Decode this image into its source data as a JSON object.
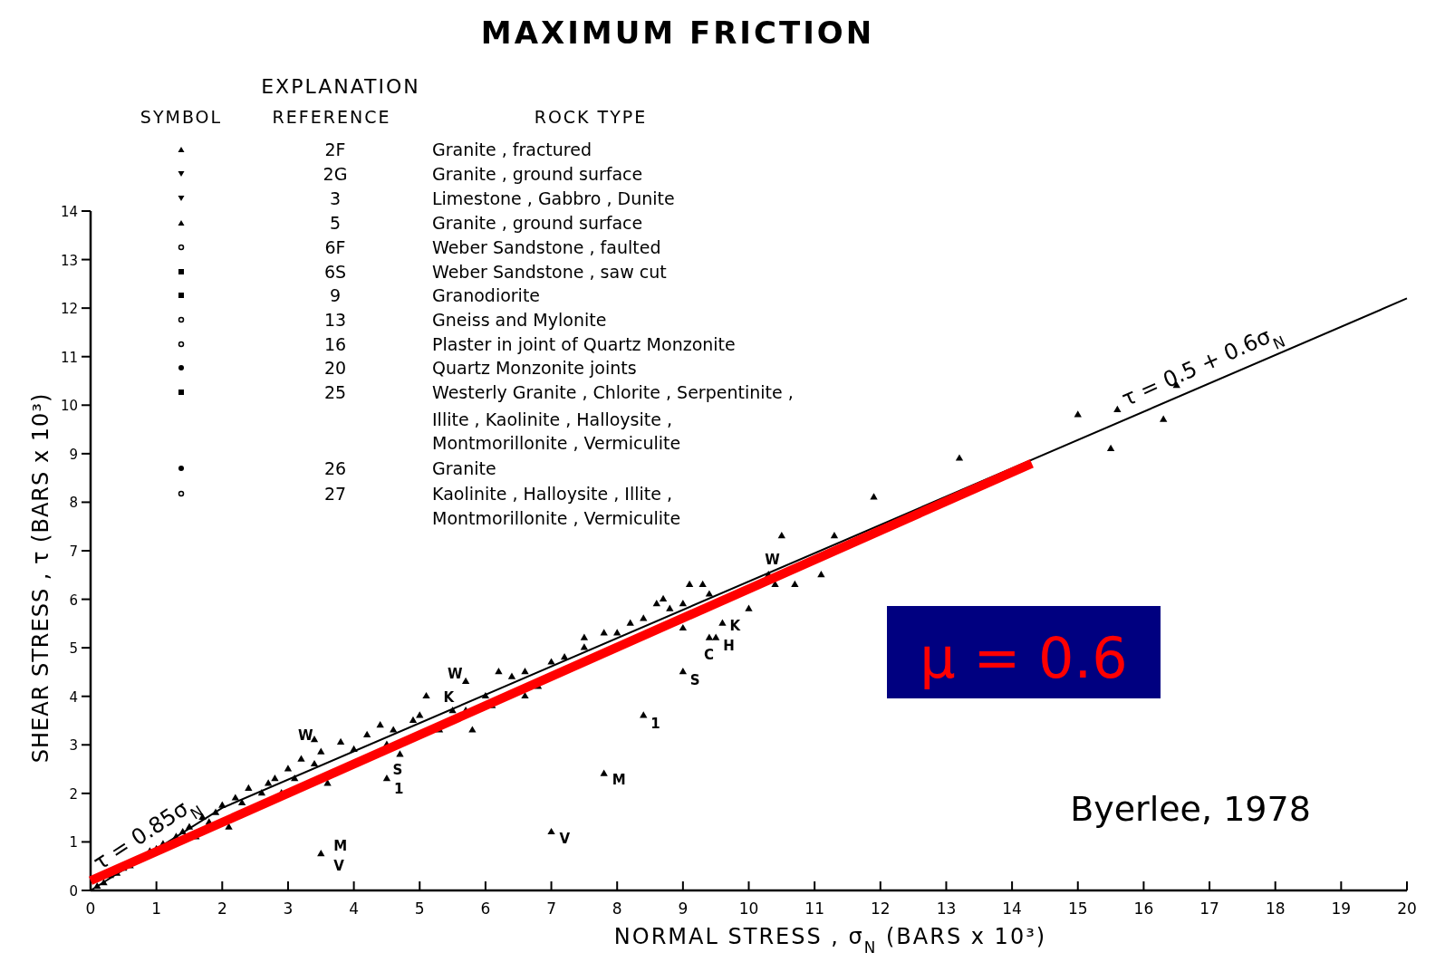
{
  "chart_data": {
    "type": "scatter",
    "title": "MAXIMUM FRICTION",
    "xlabel": "NORMAL STRESS , σ$_{N}$ (BARS x 10³)",
    "ylabel": "SHEAR STRESS , τ (BARS x 10³)",
    "xlim": [
      0,
      20
    ],
    "ylim": [
      0,
      14
    ],
    "xticks": [
      0,
      1,
      2,
      3,
      4,
      5,
      6,
      7,
      8,
      9,
      10,
      11,
      12,
      13,
      14,
      15,
      16,
      17,
      18,
      19,
      20
    ],
    "yticks": [
      0,
      1,
      2,
      3,
      4,
      5,
      6,
      7,
      8,
      9,
      10,
      11,
      12,
      13,
      14
    ],
    "series": [
      {
        "marker": "triangle",
        "color": "#000000",
        "x": [
          0.1,
          0.2,
          0.3,
          0.4,
          0.5,
          0.6,
          0.9,
          1.0,
          1.1,
          1.3,
          1.4,
          1.5,
          1.6,
          1.7,
          1.8,
          1.9,
          2.0,
          2.1,
          2.2,
          2.3,
          2.4,
          2.6,
          2.7,
          2.8,
          2.9,
          3.0,
          3.1,
          3.2,
          3.4,
          3.4,
          3.5,
          3.6,
          3.8,
          4.0,
          4.2,
          4.4,
          4.5,
          4.6,
          4.7,
          4.9,
          5.0,
          5.1,
          5.3,
          5.5,
          5.7,
          5.7,
          5.8,
          6.0,
          6.1,
          6.2,
          6.4,
          6.6,
          6.6,
          6.8,
          7.0,
          7.2,
          7.5,
          7.5,
          7.8,
          8.0,
          8.2,
          8.4,
          8.6,
          8.7,
          8.8,
          9.0,
          9.0,
          9.1,
          9.3,
          9.4,
          9.4,
          9.5,
          9.6,
          10.0,
          10.3,
          10.4,
          10.5,
          10.7,
          11.1,
          11.3,
          11.9,
          13.2,
          15.0,
          15.5,
          15.6,
          16.3,
          16.5,
          3.5,
          4.5,
          7.0,
          7.8,
          8.4,
          9.0
        ],
        "values": [
          0.08,
          0.15,
          0.3,
          0.35,
          0.45,
          0.5,
          0.8,
          0.85,
          0.95,
          1.1,
          1.2,
          1.3,
          1.1,
          1.5,
          1.4,
          1.6,
          1.75,
          1.3,
          1.9,
          1.8,
          2.1,
          2.0,
          2.2,
          2.3,
          2.0,
          2.5,
          2.3,
          2.7,
          2.6,
          3.1,
          2.85,
          2.2,
          3.05,
          2.9,
          3.2,
          3.4,
          3.0,
          3.3,
          2.8,
          3.5,
          3.6,
          4.0,
          3.3,
          3.7,
          3.7,
          4.3,
          3.3,
          4.0,
          3.8,
          4.5,
          4.4,
          4.5,
          4.0,
          4.2,
          4.7,
          4.8,
          5.0,
          5.2,
          5.3,
          5.3,
          5.5,
          5.6,
          5.9,
          6.0,
          5.8,
          5.4,
          5.9,
          6.3,
          6.3,
          6.1,
          5.2,
          5.2,
          5.5,
          5.8,
          6.5,
          6.3,
          7.3,
          6.3,
          6.5,
          7.3,
          8.1,
          8.9,
          9.8,
          9.1,
          9.9,
          9.7,
          10.4,
          0.75,
          2.3,
          1.2,
          2.4,
          3.6,
          4.5
        ]
      },
      {
        "type": "line",
        "color": "#000000",
        "x": [
          0,
          2,
          20
        ],
        "values": [
          0,
          1.7,
          12.2
        ]
      },
      {
        "type": "line",
        "color": "#ff0000",
        "x": [
          0,
          14.3
        ],
        "values": [
          0.2,
          8.8
        ]
      }
    ],
    "annotations": [
      "EXPLANATION",
      "SYMBOL",
      "REFERENCE",
      "ROCK TYPE",
      "2F",
      "Granite , fractured",
      "2G",
      "Granite , ground surface",
      "3",
      "Limestone , Gabbro , Dunite",
      "5",
      "Granite , ground surface",
      "6F",
      "Weber Sandstone , faulted",
      "6S",
      "Weber Sandstone , saw cut",
      "9",
      "Granodiorite",
      "13",
      "Gneiss and Mylonite",
      "16",
      "Plaster in joint of Quartz Monzonite",
      "20",
      "Quartz Monzonite joints",
      "25",
      "Westerly Granite , Chlorite , Serpentinite ,",
      "Illite , Kaolinite , Halloysite ,",
      "Montmorillonite , Vermiculite",
      "26",
      "Granite",
      "27",
      "Kaolinite , Halloysite , Illite ,",
      "Montmorillonite , Vermiculite",
      "μ = 0.6",
      "Byerlee, 1978",
      {
        "text": "τ = 0.85σ$_{N}$",
        "x": 1,
        "y": 0.85
      },
      {
        "text": "τ = 0.5 + 0.6σ$_{N}$",
        "x": 17,
        "y": 10.45
      },
      {
        "text": "W",
        "x": 3.4,
        "y": 3.1
      },
      {
        "text": "S",
        "x": 4.7,
        "y": 2.8
      },
      {
        "text": "1",
        "x": 4.5,
        "y": 2.3
      },
      {
        "text": "M",
        "x": 3.5,
        "y": 0.75
      },
      {
        "text": "V",
        "x": 3.5,
        "y": 0.75
      },
      {
        "text": "W",
        "x": 5.7,
        "y": 4.3
      },
      {
        "text": "K",
        "x": 5.5,
        "y": 3.7
      },
      {
        "text": "S",
        "x": 9.0,
        "y": 4.5
      },
      {
        "text": "1",
        "x": 8.4,
        "y": 3.6
      },
      {
        "text": "M",
        "x": 7.8,
        "y": 2.4
      },
      {
        "text": "V",
        "x": 7.0,
        "y": 1.2
      },
      {
        "text": "C",
        "x": 9.4,
        "y": 5.2
      },
      {
        "text": "H",
        "x": 9.5,
        "y": 5.2
      },
      {
        "text": "K",
        "x": 9.6,
        "y": 5.5
      },
      {
        "text": "W",
        "x": 10.3,
        "y": 6.5
      }
    ]
  }
}
